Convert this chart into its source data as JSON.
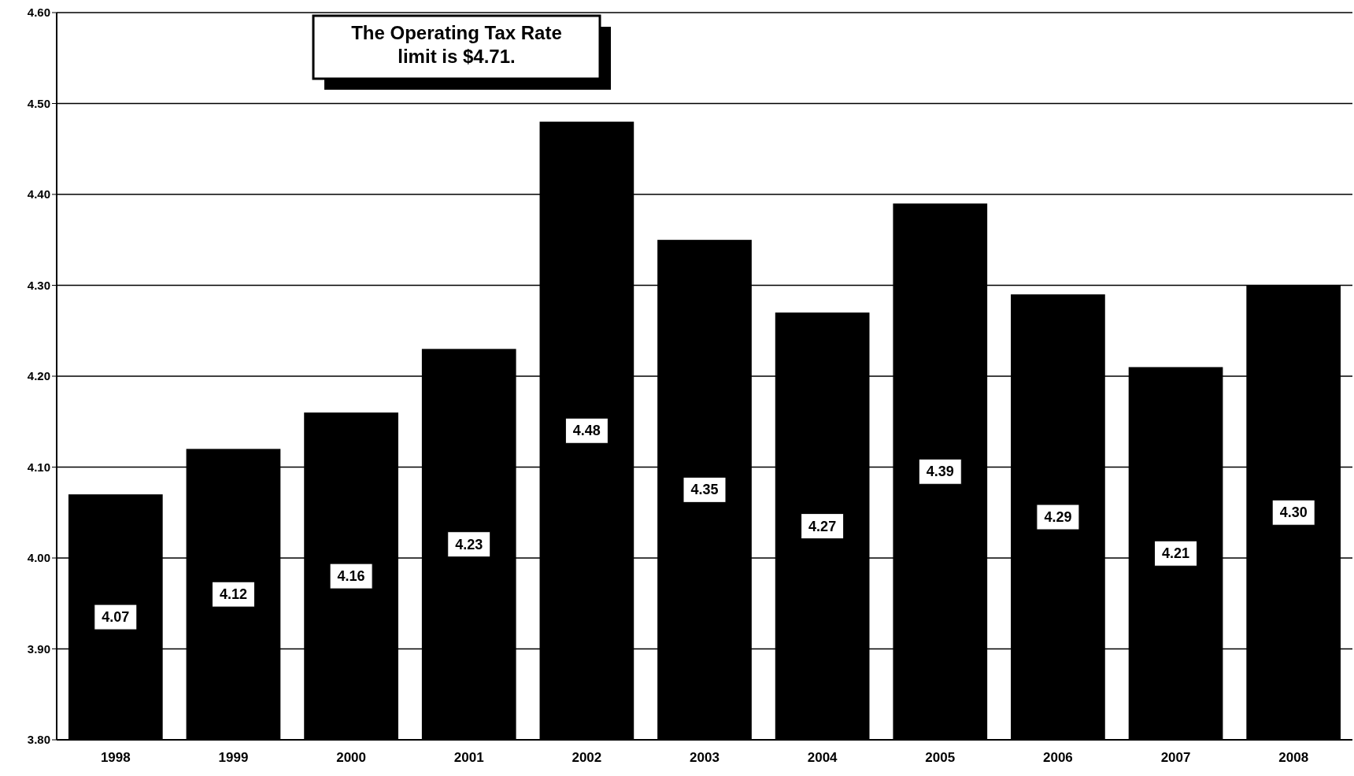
{
  "chart_data": {
    "type": "bar",
    "categories": [
      "1998",
      "1999",
      "2000",
      "2001",
      "2002",
      "2003",
      "2004",
      "2005",
      "2006",
      "2007",
      "2008"
    ],
    "values": [
      4.07,
      4.12,
      4.16,
      4.23,
      4.48,
      4.35,
      4.27,
      4.39,
      4.29,
      4.21,
      4.3
    ],
    "value_labels": [
      "4.07",
      "4.12",
      "4.16",
      "4.23",
      "4.48",
      "4.35",
      "4.27",
      "4.39",
      "4.29",
      "4.21",
      "4.30"
    ],
    "color": "#000000",
    "ylim": [
      3.8,
      4.6
    ],
    "yticks": [
      {
        "value": 3.8,
        "label": "3.80"
      },
      {
        "value": 3.9,
        "label": "3.90"
      },
      {
        "value": 4.0,
        "label": "4.00"
      },
      {
        "value": 4.1,
        "label": "4.10"
      },
      {
        "value": 4.2,
        "label": "4.20"
      },
      {
        "value": 4.3,
        "label": "4.30"
      },
      {
        "value": 4.4,
        "label": "4.40"
      },
      {
        "value": 4.5,
        "label": "4.50"
      },
      {
        "value": 4.6,
        "label": "4.60"
      }
    ],
    "grid": "y",
    "annotations": [
      "The Operating Tax Rate limit is $4.71."
    ]
  }
}
